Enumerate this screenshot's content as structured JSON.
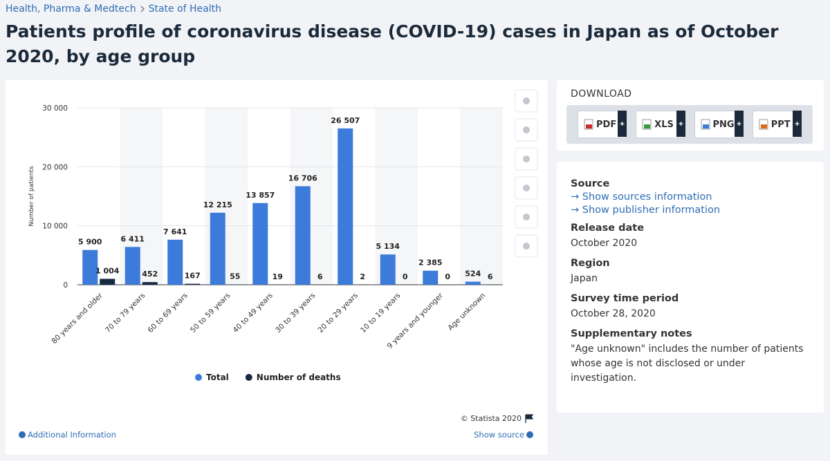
{
  "breadcrumb": [
    "Health, Pharma & Medtech",
    "State of Health"
  ],
  "title": "Patients profile of coronavirus disease (COVID-19) cases in Japan as of October 2020, by age group",
  "chart_data": {
    "type": "bar",
    "y_label": "Number of patients",
    "categories": [
      "80 years and older",
      "70 to 79 years",
      "60 to 69 years",
      "50 to 59 years",
      "40 to 49 years",
      "30 to 39 years",
      "20 to 29 years",
      "10 to 19 years",
      "9 years and younger",
      "Age unknown"
    ],
    "series": [
      {
        "name": "Total",
        "color": "#3c7bd9",
        "values": [
          5900,
          6411,
          7641,
          12215,
          13857,
          16706,
          26507,
          5134,
          2385,
          524
        ],
        "value_labels": [
          "5 900",
          "6 411",
          "7 641",
          "12 215",
          "13 857",
          "16 706",
          "26 507",
          "5 134",
          "2 385",
          "524"
        ]
      },
      {
        "name": "Number of deaths",
        "color": "#172a44",
        "values": [
          1004,
          452,
          167,
          55,
          19,
          6,
          2,
          0,
          0,
          6
        ],
        "value_labels": [
          "1 004",
          "452",
          "167",
          "55",
          "19",
          "6",
          "2",
          "0",
          "0",
          "6"
        ]
      }
    ],
    "ylim": [
      0,
      30000
    ],
    "yticks": [
      0,
      {
        "value": 10000,
        "label": "10 000"
      },
      {
        "value": 20000,
        "label": "20 000"
      },
      {
        "value": 30000,
        "label": "30 000"
      }
    ],
    "grid": true,
    "legend": "bottom"
  },
  "footer": {
    "credit": "© Statista 2020",
    "additional_info": "Additional Information",
    "show_source": "Show source"
  },
  "download": {
    "heading": "DOWNLOAD",
    "formats": [
      "PDF",
      "XLS",
      "PNG",
      "PPT"
    ]
  },
  "info": [
    {
      "heading": "Source",
      "links": [
        "→ Show sources information",
        "→ Show publisher information"
      ]
    },
    {
      "heading": "Release date",
      "text": "October 2020"
    },
    {
      "heading": "Region",
      "text": "Japan"
    },
    {
      "heading": "Survey time period",
      "text": "October 28, 2020"
    },
    {
      "heading": "Supplementary notes",
      "text": "\"Age unknown\" includes the number of patients whose age is not disclosed or under investigation."
    }
  ]
}
